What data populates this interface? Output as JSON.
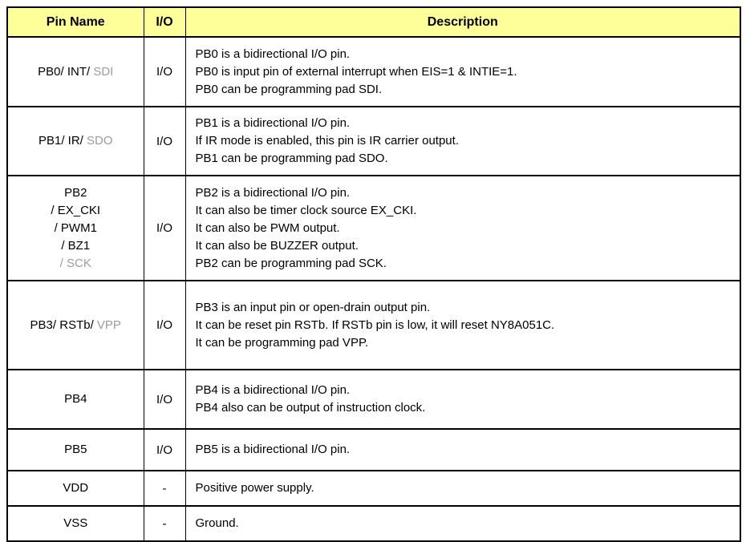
{
  "colors": {
    "header_bg": "#FFFF99",
    "border": "#000000",
    "text": "#000000",
    "muted_text": "#9C9C9C"
  },
  "table": {
    "columns": [
      "Pin Name",
      "I/O",
      "Description"
    ],
    "rows": [
      {
        "pin_lines": [
          {
            "segments": [
              {
                "text": "PB0/ INT/ ",
                "muted": false
              },
              {
                "text": "SDI",
                "muted": true
              }
            ]
          }
        ],
        "io": "I/O",
        "description": [
          "PB0 is a bidirectional I/O pin.",
          "PB0 is input pin of external interrupt when EIS=1 & INTIE=1.",
          "PB0 can be programming pad SDI."
        ]
      },
      {
        "pin_lines": [
          {
            "segments": [
              {
                "text": "PB1/ IR/ ",
                "muted": false
              },
              {
                "text": "SDO",
                "muted": true
              }
            ]
          }
        ],
        "io": "I/O",
        "description": [
          "PB1 is a bidirectional I/O pin.",
          "If IR mode is enabled, this pin is IR carrier output.",
          "PB1 can be programming pad SDO."
        ]
      },
      {
        "pin_lines": [
          {
            "segments": [
              {
                "text": "PB2",
                "muted": false
              }
            ]
          },
          {
            "segments": [
              {
                "text": "/ EX_CKI",
                "muted": false
              }
            ]
          },
          {
            "segments": [
              {
                "text": "/ PWM1",
                "muted": false
              }
            ]
          },
          {
            "segments": [
              {
                "text": "/ BZ1",
                "muted": false
              }
            ]
          },
          {
            "segments": [
              {
                "text": "/ SCK",
                "muted": true
              }
            ]
          }
        ],
        "io": "I/O",
        "description": [
          "PB2 is a bidirectional I/O pin.",
          "It can also be timer clock source EX_CKI.",
          "It can also be PWM output.",
          "It can also be BUZZER output.",
          "PB2 can be programming pad SCK."
        ]
      },
      {
        "pin_lines": [
          {
            "segments": [
              {
                "text": "PB3/ RSTb/ ",
                "muted": false
              },
              {
                "text": "VPP",
                "muted": true
              }
            ]
          }
        ],
        "io": "I/O",
        "description": [
          "PB3 is an input pin or open-drain output pin.",
          "It can be reset pin RSTb. If RSTb pin is low, it will reset NY8A051C.",
          "It can be programming pad VPP."
        ]
      },
      {
        "pin_lines": [
          {
            "segments": [
              {
                "text": "PB4",
                "muted": false
              }
            ]
          }
        ],
        "io": "I/O",
        "description": [
          "PB4 is a bidirectional I/O pin.",
          "PB4 also can be output of instruction clock."
        ]
      },
      {
        "pin_lines": [
          {
            "segments": [
              {
                "text": "PB5",
                "muted": false
              }
            ]
          }
        ],
        "io": "I/O",
        "description": [
          "PB5 is a bidirectional I/O pin."
        ]
      },
      {
        "pin_lines": [
          {
            "segments": [
              {
                "text": "VDD",
                "muted": false
              }
            ]
          }
        ],
        "io": "-",
        "description": [
          "Positive power supply."
        ]
      },
      {
        "pin_lines": [
          {
            "segments": [
              {
                "text": "VSS",
                "muted": false
              }
            ]
          }
        ],
        "io": "-",
        "description": [
          "Ground."
        ]
      }
    ]
  }
}
